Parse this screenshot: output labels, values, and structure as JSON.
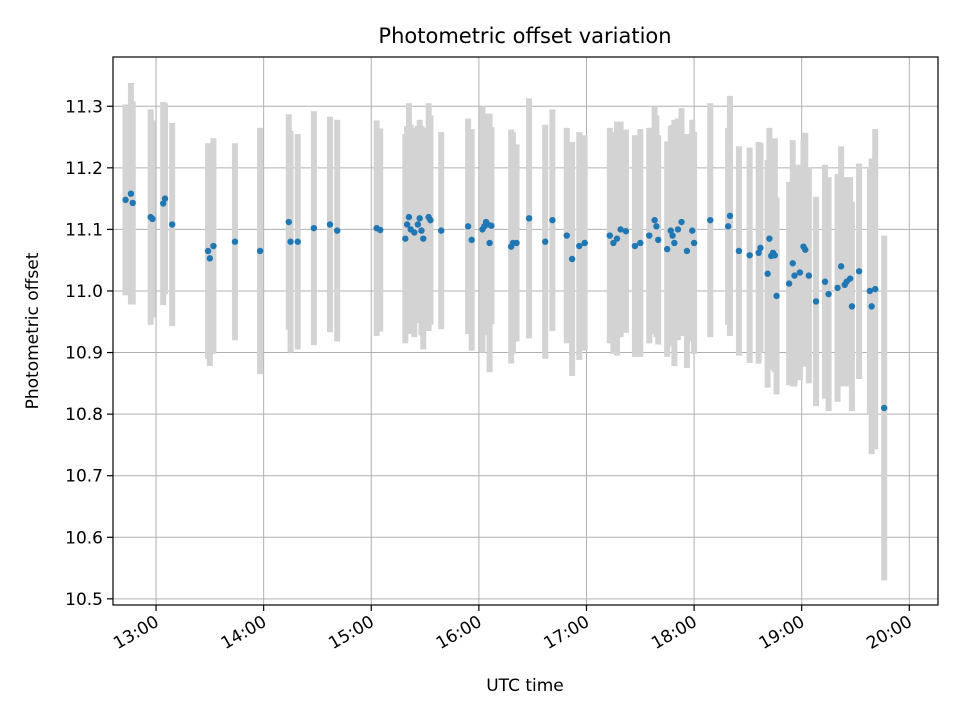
{
  "chart_data": {
    "type": "scatter",
    "title": "Photometric offset variation",
    "xlabel": "UTC time",
    "ylabel": "Photometric offset",
    "x_ticks": [
      "13:00",
      "14:00",
      "15:00",
      "16:00",
      "17:00",
      "18:00",
      "19:00",
      "20:00"
    ],
    "y_ticks": [
      "10.5",
      "10.6",
      "10.7",
      "10.8",
      "10.9",
      "11.0",
      "11.1",
      "11.2",
      "11.3"
    ],
    "x_range": [
      "12:36",
      "20:16"
    ],
    "ylim": [
      10.49,
      11.38
    ],
    "grid": true,
    "colors": {
      "points": "#1f77b4",
      "errorbars": "#d3d3d3",
      "grid": "#b0b0b0"
    },
    "series": [
      {
        "points": [
          [
            "12:43",
            11.148,
            0.155
          ],
          [
            "12:46",
            11.158,
            0.18
          ],
          [
            "12:47",
            11.143,
            0.165
          ],
          [
            "12:57",
            11.12,
            0.175
          ],
          [
            "12:58",
            11.117,
            0.16
          ],
          [
            "13:04",
            11.142,
            0.165
          ],
          [
            "13:05",
            11.15,
            0.155
          ],
          [
            "13:09",
            11.108,
            0.165
          ],
          [
            "13:29",
            11.065,
            0.175
          ],
          [
            "13:30",
            11.053,
            0.175
          ],
          [
            "13:32",
            11.073,
            0.175
          ],
          [
            "13:44",
            11.08,
            0.16
          ],
          [
            "13:58",
            11.065,
            0.2
          ],
          [
            "14:14",
            11.112,
            0.175
          ],
          [
            "14:15",
            11.08,
            0.18
          ],
          [
            "14:19",
            11.08,
            0.175
          ],
          [
            "14:28",
            11.102,
            0.19
          ],
          [
            "14:37",
            11.108,
            0.175
          ],
          [
            "14:41",
            11.098,
            0.18
          ],
          [
            "15:03",
            11.102,
            0.175
          ],
          [
            "15:05",
            11.099,
            0.165
          ],
          [
            "15:19",
            11.085,
            0.17
          ],
          [
            "15:20",
            11.108,
            0.16
          ],
          [
            "15:21",
            11.12,
            0.185
          ],
          [
            "15:22",
            11.1,
            0.17
          ],
          [
            "15:24",
            11.095,
            0.17
          ],
          [
            "15:26",
            11.108,
            0.16
          ],
          [
            "15:27",
            11.118,
            0.16
          ],
          [
            "15:28",
            11.098,
            0.17
          ],
          [
            "15:29",
            11.085,
            0.18
          ],
          [
            "15:32",
            11.12,
            0.185
          ],
          [
            "15:33",
            11.115,
            0.17
          ],
          [
            "15:39",
            11.098,
            0.16
          ],
          [
            "15:54",
            11.105,
            0.175
          ],
          [
            "15:56",
            11.083,
            0.18
          ],
          [
            "16:02",
            11.1,
            0.2
          ],
          [
            "16:03",
            11.105,
            0.17
          ],
          [
            "16:04",
            11.112,
            0.175
          ],
          [
            "16:05",
            11.108,
            0.18
          ],
          [
            "16:06",
            11.078,
            0.21
          ],
          [
            "16:07",
            11.106,
            0.16
          ],
          [
            "16:18",
            11.072,
            0.19
          ],
          [
            "16:19",
            11.078,
            0.18
          ],
          [
            "16:21",
            11.078,
            0.16
          ],
          [
            "16:28",
            11.118,
            0.195
          ],
          [
            "16:37",
            11.08,
            0.19
          ],
          [
            "16:41",
            11.115,
            0.18
          ],
          [
            "16:49",
            11.09,
            0.175
          ],
          [
            "16:52",
            11.052,
            0.19
          ],
          [
            "16:56",
            11.073,
            0.185
          ],
          [
            "16:59",
            11.078,
            0.175
          ],
          [
            "17:13",
            11.09,
            0.175
          ],
          [
            "17:15",
            11.078,
            0.18
          ],
          [
            "17:17",
            11.085,
            0.19
          ],
          [
            "17:19",
            11.1,
            0.175
          ],
          [
            "17:22",
            11.097,
            0.165
          ],
          [
            "17:27",
            11.073,
            0.18
          ],
          [
            "17:30",
            11.078,
            0.185
          ],
          [
            "17:35",
            11.09,
            0.175
          ],
          [
            "17:38",
            11.115,
            0.185
          ],
          [
            "17:39",
            11.105,
            0.18
          ],
          [
            "17:40",
            11.083,
            0.17
          ],
          [
            "17:45",
            11.068,
            0.175
          ],
          [
            "17:47",
            11.098,
            0.17
          ],
          [
            "17:48",
            11.09,
            0.18
          ],
          [
            "17:49",
            11.078,
            0.2
          ],
          [
            "17:51",
            11.1,
            0.18
          ],
          [
            "17:53",
            11.112,
            0.185
          ],
          [
            "17:56",
            11.065,
            0.19
          ],
          [
            "17:59",
            11.098,
            0.18
          ],
          [
            "18:00",
            11.078,
            0.18
          ],
          [
            "18:09",
            11.115,
            0.19
          ],
          [
            "18:19",
            11.105,
            0.16
          ],
          [
            "18:20",
            11.122,
            0.195
          ],
          [
            "18:25",
            11.065,
            0.17
          ],
          [
            "18:31",
            11.058,
            0.175
          ],
          [
            "18:36",
            11.062,
            0.18
          ],
          [
            "18:37",
            11.07,
            0.17
          ],
          [
            "18:41",
            11.028,
            0.185
          ],
          [
            "18:42",
            11.085,
            0.18
          ],
          [
            "18:43",
            11.057,
            0.185
          ],
          [
            "18:44",
            11.062,
            0.18
          ],
          [
            "18:45",
            11.058,
            0.19
          ],
          [
            "18:46",
            10.992,
            0.16
          ],
          [
            "18:53",
            11.012,
            0.165
          ],
          [
            "18:55",
            11.045,
            0.2
          ],
          [
            "18:56",
            11.025,
            0.18
          ],
          [
            "18:59",
            11.03,
            0.175
          ],
          [
            "19:01",
            11.072,
            0.175
          ],
          [
            "19:02",
            11.067,
            0.19
          ],
          [
            "19:04",
            11.025,
            0.175
          ],
          [
            "19:08",
            10.983,
            0.17
          ],
          [
            "19:13",
            11.015,
            0.19
          ],
          [
            "19:15",
            10.995,
            0.19
          ],
          [
            "19:20",
            11.005,
            0.185
          ],
          [
            "19:22",
            11.04,
            0.195
          ],
          [
            "19:24",
            11.01,
            0.16
          ],
          [
            "19:25",
            11.015,
            0.17
          ],
          [
            "19:27",
            11.02,
            0.165
          ],
          [
            "19:28",
            10.975,
            0.17
          ],
          [
            "19:32",
            11.032,
            0.175
          ],
          [
            "19:38",
            11.0,
            0.2
          ],
          [
            "19:39",
            10.975,
            0.24
          ],
          [
            "19:41",
            11.003,
            0.26
          ],
          [
            "19:46",
            10.81,
            0.28
          ]
        ]
      }
    ]
  }
}
